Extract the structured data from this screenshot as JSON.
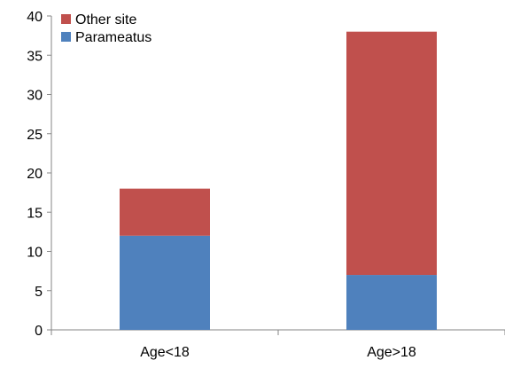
{
  "chart_data": {
    "type": "bar",
    "stacked": true,
    "title": "",
    "xlabel": "",
    "ylabel": "",
    "categories": [
      "Age<18",
      "Age>18"
    ],
    "series": [
      {
        "name": "Parameatus",
        "values": [
          12,
          7
        ],
        "color": "#4F81BD"
      },
      {
        "name": "Other site",
        "values": [
          6,
          31
        ],
        "color": "#C0504D"
      }
    ],
    "ylim": [
      0,
      40
    ],
    "yticks": [
      0,
      5,
      10,
      15,
      20,
      25,
      30,
      35,
      40
    ],
    "grid": false,
    "legend_position": "top-left",
    "legend_order": [
      "Other site",
      "Parameatus"
    ]
  }
}
